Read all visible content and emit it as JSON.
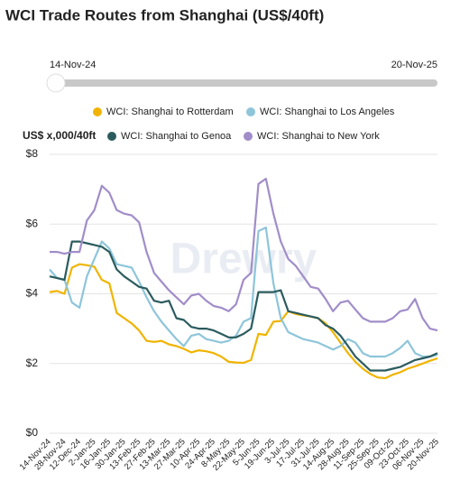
{
  "slider": {
    "start": "14-Nov-24",
    "end": "20-Nov-25"
  },
  "chart_data": {
    "type": "line",
    "title": "WCI Trade Routes from Shanghai (US$/40ft)",
    "y_label": "US$ x,000/40ft",
    "watermark": "Drewry",
    "categories": [
      "14-Nov-24",
      null,
      "28-Nov-24",
      null,
      "12-Dec-24",
      null,
      "2-Jan-25",
      null,
      "16-Jan-25",
      null,
      "30-Jan-25",
      null,
      "13-Feb-25",
      null,
      "27-Feb-25",
      null,
      "13-Mar-25",
      null,
      "27-Mar-25",
      null,
      "10-Apr-25",
      null,
      "24-Apr-25",
      null,
      "8-May-25",
      null,
      "22-May-25",
      null,
      "5-Jun-25",
      null,
      "19-Jun-25",
      null,
      "3-Jul-25",
      null,
      "17-Jul-25",
      null,
      "31-Jul-25",
      null,
      "14-Aug-25",
      null,
      "28-Aug-25",
      null,
      "11-Sep-25",
      null,
      "25-Sep-25",
      null,
      "09-Oct-25",
      null,
      "23-Oct-25",
      null,
      "06-Nov-25",
      null,
      "20-Nov-25"
    ],
    "series": [
      {
        "name": "WCI: Shanghai to Rotterdam",
        "color": "#f0b400",
        "values": [
          4.05,
          4.08,
          4.0,
          4.75,
          4.85,
          4.82,
          4.78,
          4.4,
          4.3,
          3.45,
          3.3,
          3.15,
          2.95,
          2.65,
          2.62,
          2.65,
          2.55,
          2.5,
          2.42,
          2.32,
          2.38,
          2.35,
          2.3,
          2.2,
          2.05,
          2.03,
          2.02,
          2.1,
          2.85,
          2.82,
          3.2,
          3.22,
          3.5,
          3.42,
          3.38,
          3.35,
          3.3,
          3.15,
          2.9,
          2.6,
          2.3,
          2.05,
          1.85,
          1.7,
          1.6,
          1.58,
          1.68,
          1.75,
          1.85,
          1.92,
          2.0,
          2.08,
          2.15
        ]
      },
      {
        "name": "WCI: Shanghai to Los Angeles",
        "color": "#8ec5da",
        "values": [
          4.7,
          4.45,
          4.4,
          3.75,
          3.6,
          4.5,
          5.0,
          5.5,
          5.3,
          4.85,
          4.8,
          4.75,
          4.35,
          3.9,
          3.5,
          3.2,
          2.95,
          2.7,
          2.5,
          2.8,
          2.85,
          2.7,
          2.65,
          2.6,
          2.65,
          2.8,
          3.2,
          3.3,
          5.8,
          5.9,
          4.3,
          3.3,
          2.9,
          2.8,
          2.7,
          2.65,
          2.6,
          2.5,
          2.4,
          2.5,
          2.7,
          2.6,
          2.3,
          2.2,
          2.2,
          2.2,
          2.3,
          2.45,
          2.65,
          2.3,
          2.2,
          2.2,
          2.25
        ]
      },
      {
        "name": "WCI: Shanghai to Genoa",
        "color": "#2b5b5d",
        "values": [
          4.5,
          4.45,
          4.4,
          5.5,
          5.5,
          5.45,
          5.4,
          5.35,
          5.2,
          4.7,
          4.5,
          4.35,
          4.2,
          4.15,
          3.8,
          3.75,
          3.8,
          3.3,
          3.25,
          3.05,
          3.0,
          3.0,
          2.95,
          2.85,
          2.75,
          2.75,
          2.85,
          3.0,
          4.05,
          4.05,
          4.05,
          4.1,
          3.5,
          3.45,
          3.4,
          3.35,
          3.3,
          3.1,
          3.0,
          2.8,
          2.5,
          2.2,
          2.0,
          1.8,
          1.8,
          1.8,
          1.85,
          1.9,
          2.0,
          2.1,
          2.15,
          2.2,
          2.3
        ]
      },
      {
        "name": "WCI: Shanghai to New York",
        "color": "#a18dc9",
        "values": [
          5.2,
          5.2,
          5.15,
          5.2,
          5.2,
          6.1,
          6.4,
          7.1,
          6.9,
          6.4,
          6.3,
          6.25,
          6.05,
          5.2,
          4.6,
          4.35,
          4.1,
          3.9,
          3.7,
          3.95,
          4.0,
          3.8,
          3.65,
          3.6,
          3.5,
          3.7,
          4.4,
          4.6,
          7.15,
          7.3,
          6.3,
          5.5,
          5.0,
          4.8,
          4.5,
          4.2,
          4.15,
          3.85,
          3.5,
          3.75,
          3.8,
          3.55,
          3.3,
          3.2,
          3.2,
          3.2,
          3.3,
          3.5,
          3.55,
          3.85,
          3.3,
          3.0,
          2.95
        ]
      }
    ],
    "ylim": [
      0,
      8
    ],
    "yticks": [
      {
        "value": 0,
        "label": "$0"
      },
      {
        "value": 2,
        "label": "$2"
      },
      {
        "value": 4,
        "label": "$4"
      },
      {
        "value": 6,
        "label": "$6"
      },
      {
        "value": 8,
        "label": "$8"
      }
    ],
    "grid": true
  }
}
